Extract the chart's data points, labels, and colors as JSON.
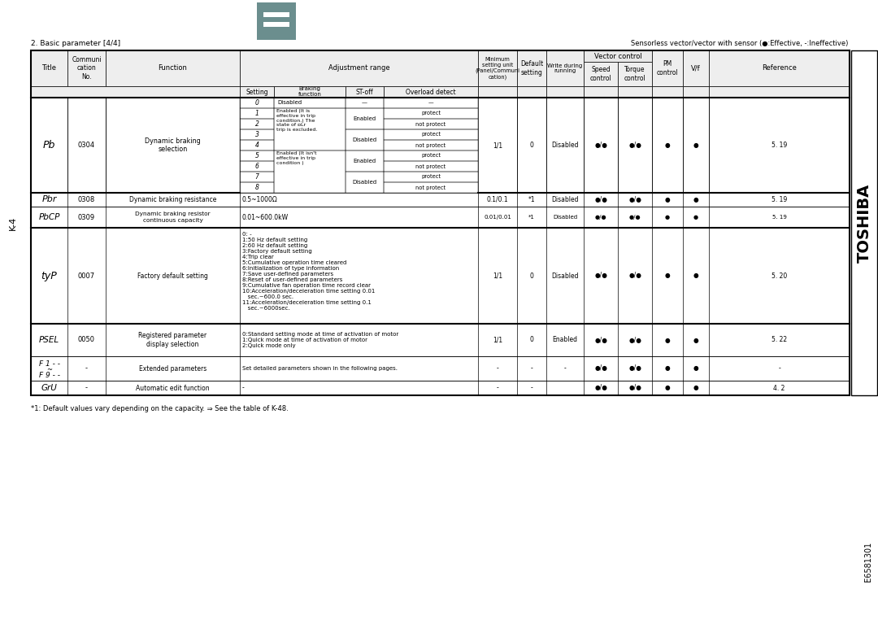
{
  "title_left": "2. Basic parameter [4/4]",
  "title_right": "Sensorless vector/vector with sensor (●:Effective, -:Ineffective)",
  "toshiba_label": "TOSHIBA",
  "page_label": "K-4",
  "doc_number": "E6581301",
  "footnote": "*1: Default values vary depending on the capacity. ⇒ See the table of K-48.",
  "icon_color": "#6b8e8e",
  "bg_color": "#ffffff",
  "line_color": "#000000"
}
